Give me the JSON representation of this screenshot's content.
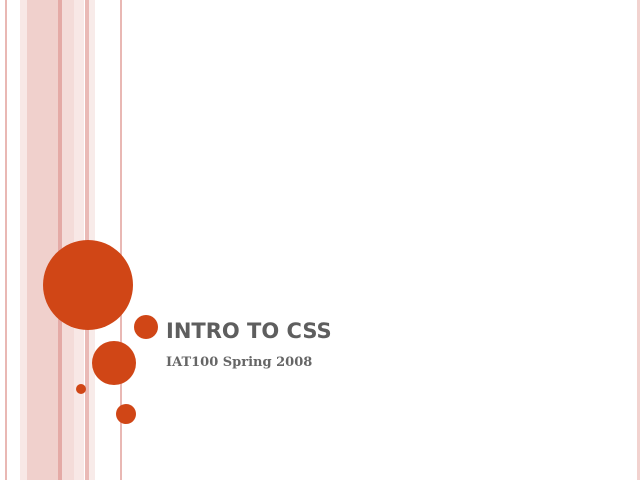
{
  "slide": {
    "title": "INTRO TO CSS",
    "subtitle": "IAT100 Spring 2008"
  },
  "colors": {
    "accent": "#d04616",
    "stripe": "#f0d0cc"
  }
}
